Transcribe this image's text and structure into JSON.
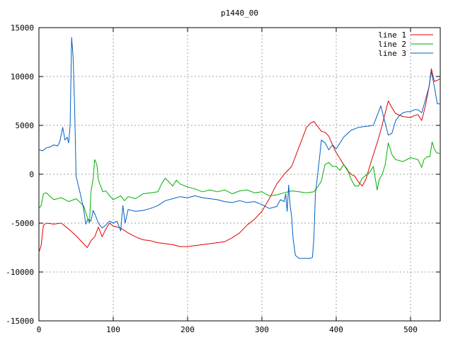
{
  "chart_data": {
    "type": "line",
    "title": "p1440_00",
    "xlabel": "",
    "ylabel": "",
    "xlim": [
      0,
      540
    ],
    "ylim": [
      -15000,
      15000
    ],
    "x_ticks": [
      0,
      100,
      200,
      300,
      400,
      500
    ],
    "y_ticks": [
      -15000,
      -10000,
      -5000,
      0,
      5000,
      10000,
      15000
    ],
    "grid": true,
    "legend_position": "top-right",
    "series": [
      {
        "name": "line 1",
        "color": "#e00000",
        "points": [
          [
            0,
            -8000
          ],
          [
            3,
            -7300
          ],
          [
            6,
            -5200
          ],
          [
            10,
            -5000
          ],
          [
            20,
            -5100
          ],
          [
            30,
            -5000
          ],
          [
            40,
            -5600
          ],
          [
            50,
            -6300
          ],
          [
            60,
            -7100
          ],
          [
            65,
            -7500
          ],
          [
            70,
            -6800
          ],
          [
            75,
            -6400
          ],
          [
            80,
            -5400
          ],
          [
            85,
            -6400
          ],
          [
            90,
            -5600
          ],
          [
            95,
            -5000
          ],
          [
            100,
            -5300
          ],
          [
            110,
            -5500
          ],
          [
            120,
            -6000
          ],
          [
            130,
            -6400
          ],
          [
            140,
            -6700
          ],
          [
            150,
            -6800
          ],
          [
            160,
            -7000
          ],
          [
            170,
            -7100
          ],
          [
            180,
            -7200
          ],
          [
            190,
            -7400
          ],
          [
            200,
            -7400
          ],
          [
            210,
            -7300
          ],
          [
            220,
            -7200
          ],
          [
            230,
            -7100
          ],
          [
            240,
            -7000
          ],
          [
            250,
            -6900
          ],
          [
            260,
            -6500
          ],
          [
            270,
            -6000
          ],
          [
            280,
            -5200
          ],
          [
            290,
            -4600
          ],
          [
            300,
            -3800
          ],
          [
            310,
            -2500
          ],
          [
            320,
            -1000
          ],
          [
            330,
            0
          ],
          [
            340,
            800
          ],
          [
            345,
            1800
          ],
          [
            350,
            2800
          ],
          [
            355,
            3800
          ],
          [
            360,
            4800
          ],
          [
            365,
            5200
          ],
          [
            370,
            5400
          ],
          [
            375,
            4900
          ],
          [
            380,
            4400
          ],
          [
            385,
            4300
          ],
          [
            390,
            3900
          ],
          [
            395,
            3000
          ],
          [
            400,
            2200
          ],
          [
            405,
            1600
          ],
          [
            410,
            1000
          ],
          [
            415,
            400
          ],
          [
            420,
            0
          ],
          [
            425,
            -200
          ],
          [
            430,
            -800
          ],
          [
            435,
            -1200
          ],
          [
            440,
            -500
          ],
          [
            445,
            800
          ],
          [
            450,
            2000
          ],
          [
            455,
            3200
          ],
          [
            460,
            4500
          ],
          [
            465,
            6000
          ],
          [
            470,
            7500
          ],
          [
            475,
            6800
          ],
          [
            480,
            6200
          ],
          [
            490,
            5900
          ],
          [
            500,
            5800
          ],
          [
            505,
            6000
          ],
          [
            510,
            6100
          ],
          [
            515,
            5500
          ],
          [
            520,
            7000
          ],
          [
            525,
            9000
          ],
          [
            528,
            10800
          ],
          [
            532,
            9500
          ],
          [
            536,
            9600
          ],
          [
            540,
            9800
          ]
        ]
      },
      {
        "name": "line 2",
        "color": "#00b000",
        "points": [
          [
            0,
            -3500
          ],
          [
            3,
            -3200
          ],
          [
            6,
            -2000
          ],
          [
            10,
            -1900
          ],
          [
            20,
            -2600
          ],
          [
            30,
            -2400
          ],
          [
            40,
            -2800
          ],
          [
            50,
            -2500
          ],
          [
            60,
            -3200
          ],
          [
            65,
            -4400
          ],
          [
            68,
            -5000
          ],
          [
            70,
            -1800
          ],
          [
            73,
            -400
          ],
          [
            75,
            1500
          ],
          [
            78,
            1000
          ],
          [
            80,
            -600
          ],
          [
            83,
            -1200
          ],
          [
            86,
            -1800
          ],
          [
            90,
            -1700
          ],
          [
            95,
            -2200
          ],
          [
            100,
            -2600
          ],
          [
            110,
            -2200
          ],
          [
            115,
            -2700
          ],
          [
            120,
            -2300
          ],
          [
            130,
            -2500
          ],
          [
            140,
            -2000
          ],
          [
            150,
            -1900
          ],
          [
            160,
            -1800
          ],
          [
            165,
            -1000
          ],
          [
            170,
            -400
          ],
          [
            175,
            -800
          ],
          [
            180,
            -1200
          ],
          [
            185,
            -600
          ],
          [
            190,
            -1000
          ],
          [
            200,
            -1300
          ],
          [
            210,
            -1500
          ],
          [
            220,
            -1800
          ],
          [
            230,
            -1600
          ],
          [
            240,
            -1800
          ],
          [
            250,
            -1600
          ],
          [
            260,
            -2000
          ],
          [
            270,
            -1700
          ],
          [
            280,
            -1600
          ],
          [
            290,
            -1900
          ],
          [
            300,
            -1800
          ],
          [
            310,
            -2200
          ],
          [
            320,
            -2100
          ],
          [
            330,
            -1900
          ],
          [
            340,
            -1700
          ],
          [
            350,
            -1800
          ],
          [
            360,
            -1900
          ],
          [
            370,
            -1800
          ],
          [
            375,
            -1300
          ],
          [
            380,
            -700
          ],
          [
            385,
            1000
          ],
          [
            390,
            1200
          ],
          [
            395,
            800
          ],
          [
            400,
            800
          ],
          [
            405,
            400
          ],
          [
            410,
            1000
          ],
          [
            415,
            500
          ],
          [
            420,
            -500
          ],
          [
            425,
            -1200
          ],
          [
            430,
            -1200
          ],
          [
            435,
            -400
          ],
          [
            440,
            -100
          ],
          [
            445,
            200
          ],
          [
            450,
            800
          ],
          [
            455,
            -1600
          ],
          [
            458,
            -500
          ],
          [
            462,
            0
          ],
          [
            466,
            1000
          ],
          [
            470,
            3200
          ],
          [
            475,
            2000
          ],
          [
            480,
            1500
          ],
          [
            490,
            1300
          ],
          [
            500,
            1700
          ],
          [
            510,
            1500
          ],
          [
            515,
            700
          ],
          [
            518,
            1500
          ],
          [
            522,
            1800
          ],
          [
            526,
            1800
          ],
          [
            529,
            3300
          ],
          [
            532,
            2600
          ],
          [
            535,
            2200
          ],
          [
            540,
            2100
          ]
        ]
      },
      {
        "name": "line 3",
        "color": "#0060c0",
        "points": [
          [
            0,
            2500
          ],
          [
            5,
            2400
          ],
          [
            10,
            2700
          ],
          [
            15,
            2800
          ],
          [
            20,
            3000
          ],
          [
            25,
            2900
          ],
          [
            28,
            3300
          ],
          [
            32,
            4800
          ],
          [
            35,
            3500
          ],
          [
            38,
            3800
          ],
          [
            40,
            3200
          ],
          [
            42,
            5000
          ],
          [
            44,
            14000
          ],
          [
            46,
            12000
          ],
          [
            48,
            7000
          ],
          [
            50,
            -200
          ],
          [
            55,
            -1800
          ],
          [
            60,
            -3500
          ],
          [
            63,
            -5100
          ],
          [
            66,
            -4600
          ],
          [
            70,
            -4800
          ],
          [
            73,
            -3700
          ],
          [
            76,
            -4200
          ],
          [
            80,
            -5000
          ],
          [
            85,
            -5500
          ],
          [
            90,
            -5200
          ],
          [
            95,
            -4800
          ],
          [
            100,
            -5000
          ],
          [
            105,
            -4800
          ],
          [
            110,
            -5800
          ],
          [
            113,
            -3200
          ],
          [
            116,
            -5000
          ],
          [
            120,
            -3600
          ],
          [
            130,
            -3800
          ],
          [
            140,
            -3700
          ],
          [
            150,
            -3500
          ],
          [
            160,
            -3200
          ],
          [
            170,
            -2700
          ],
          [
            180,
            -2500
          ],
          [
            190,
            -2300
          ],
          [
            200,
            -2400
          ],
          [
            210,
            -2200
          ],
          [
            220,
            -2400
          ],
          [
            230,
            -2500
          ],
          [
            240,
            -2600
          ],
          [
            250,
            -2800
          ],
          [
            260,
            -2900
          ],
          [
            270,
            -2700
          ],
          [
            280,
            -2900
          ],
          [
            290,
            -2800
          ],
          [
            300,
            -3100
          ],
          [
            310,
            -3500
          ],
          [
            320,
            -3300
          ],
          [
            325,
            -2600
          ],
          [
            330,
            -2800
          ],
          [
            332,
            -2000
          ],
          [
            334,
            -3800
          ],
          [
            336,
            -1100
          ],
          [
            338,
            -3200
          ],
          [
            340,
            -4300
          ],
          [
            342,
            -6600
          ],
          [
            345,
            -8300
          ],
          [
            350,
            -8600
          ],
          [
            360,
            -8600
          ],
          [
            365,
            -8600
          ],
          [
            368,
            -8500
          ],
          [
            370,
            -6500
          ],
          [
            372,
            -2000
          ],
          [
            375,
            0
          ],
          [
            378,
            2000
          ],
          [
            380,
            3500
          ],
          [
            385,
            3200
          ],
          [
            390,
            2500
          ],
          [
            395,
            3000
          ],
          [
            400,
            2600
          ],
          [
            410,
            3800
          ],
          [
            420,
            4500
          ],
          [
            430,
            4800
          ],
          [
            440,
            4900
          ],
          [
            450,
            5000
          ],
          [
            455,
            6000
          ],
          [
            460,
            7000
          ],
          [
            465,
            5500
          ],
          [
            470,
            4000
          ],
          [
            475,
            4200
          ],
          [
            480,
            5500
          ],
          [
            485,
            6000
          ],
          [
            490,
            6300
          ],
          [
            495,
            6400
          ],
          [
            500,
            6400
          ],
          [
            505,
            6600
          ],
          [
            510,
            6600
          ],
          [
            515,
            6300
          ],
          [
            520,
            7600
          ],
          [
            525,
            9000
          ],
          [
            528,
            10500
          ],
          [
            532,
            9000
          ],
          [
            536,
            7200
          ],
          [
            540,
            7200
          ]
        ]
      }
    ]
  }
}
